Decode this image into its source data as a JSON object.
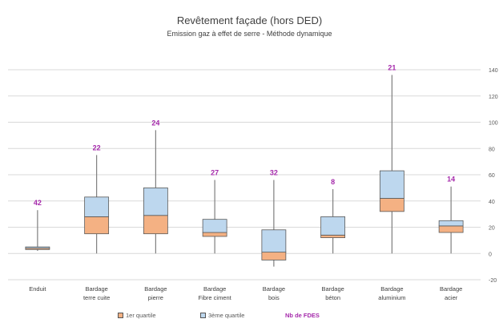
{
  "chart_data": {
    "type": "boxplot",
    "title": "Revêtement façade (hors DED)",
    "subtitle": "Emission gaz à effet de serre - Méthode dynamique",
    "ylim": [
      -20,
      140
    ],
    "yticks": [
      -20,
      0,
      20,
      40,
      60,
      80,
      100,
      120,
      140
    ],
    "grid": true,
    "legend_position": "bottom",
    "categories": [
      "Enduit",
      "Bardage terre cuite",
      "Bardage pierre",
      "Bardage Fibre ciment",
      "Bardage bois",
      "Bardage béton",
      "Bardage aluminium",
      "Bardage acier"
    ],
    "category_lines": [
      [
        "Enduit"
      ],
      [
        "Bardage",
        "terre cuite"
      ],
      [
        "Bardage",
        "pierre"
      ],
      [
        "Bardage",
        "Fibre ciment"
      ],
      [
        "Bardage",
        "bois"
      ],
      [
        "Bardage",
        "béton"
      ],
      [
        "Bardage",
        "aluminium"
      ],
      [
        "Bardage",
        "acier"
      ]
    ],
    "series": [
      {
        "name": "1er quartile",
        "color": "#f4b183"
      },
      {
        "name": "3ème quartile",
        "color": "#bdd7ee"
      },
      {
        "name": "Nb de FDES",
        "color": "#a52aab"
      }
    ],
    "boxes": [
      {
        "min": 2,
        "q1": 3,
        "median": 4,
        "q3": 5,
        "max": 33,
        "count": 42
      },
      {
        "min": 0,
        "q1": 15,
        "median": 28,
        "q3": 43,
        "max": 75,
        "count": 22
      },
      {
        "min": 0,
        "q1": 15,
        "median": 29,
        "q3": 50,
        "max": 94,
        "count": 24
      },
      {
        "min": 0,
        "q1": 13,
        "median": 16,
        "q3": 26,
        "max": 56,
        "count": 27
      },
      {
        "min": -10,
        "q1": -5,
        "median": 1,
        "q3": 18,
        "max": 56,
        "count": 32
      },
      {
        "min": 0,
        "q1": 12,
        "median": 14,
        "q3": 28,
        "max": 49,
        "count": 8
      },
      {
        "min": 0,
        "q1": 32,
        "median": 42,
        "q3": 63,
        "max": 136,
        "count": 21
      },
      {
        "min": 0,
        "q1": 16,
        "median": 21,
        "q3": 25,
        "max": 51,
        "count": 14
      }
    ]
  }
}
